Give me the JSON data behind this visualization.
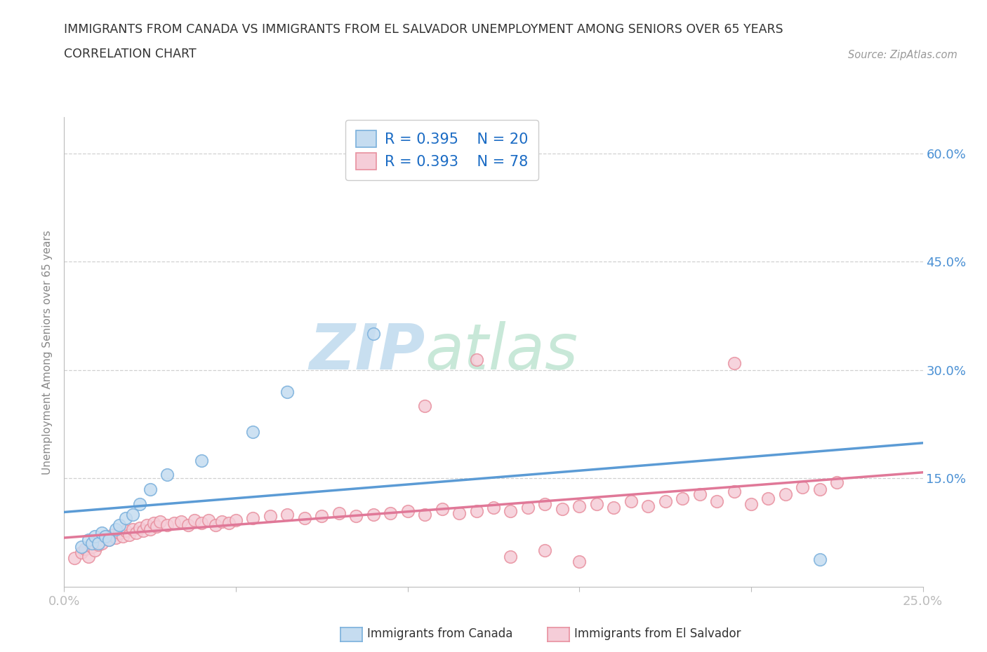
{
  "title_line1": "IMMIGRANTS FROM CANADA VS IMMIGRANTS FROM EL SALVADOR UNEMPLOYMENT AMONG SENIORS OVER 65 YEARS",
  "title_line2": "CORRELATION CHART",
  "source_text": "Source: ZipAtlas.com",
  "ylabel": "Unemployment Among Seniors over 65 years",
  "xlim": [
    0.0,
    0.25
  ],
  "ylim": [
    0.0,
    0.65
  ],
  "ytick_right_vals": [
    0.15,
    0.3,
    0.45,
    0.6
  ],
  "ytick_right_labels": [
    "15.0%",
    "30.0%",
    "45.0%",
    "60.0%"
  ],
  "canada_color": "#c5dcf0",
  "canada_edge_color": "#7ab0dc",
  "el_salvador_color": "#f5cdd8",
  "el_salvador_edge_color": "#e8909f",
  "canada_R": 0.395,
  "canada_N": 20,
  "el_salvador_R": 0.393,
  "el_salvador_N": 78,
  "canada_line_color": "#5b9bd5",
  "el_salvador_line_color": "#e07898",
  "canada_x": [
    0.005,
    0.007,
    0.008,
    0.009,
    0.01,
    0.011,
    0.012,
    0.013,
    0.015,
    0.016,
    0.018,
    0.02,
    0.022,
    0.025,
    0.03,
    0.04,
    0.055,
    0.065,
    0.09,
    0.22
  ],
  "canada_y": [
    0.055,
    0.065,
    0.06,
    0.07,
    0.06,
    0.075,
    0.07,
    0.065,
    0.08,
    0.085,
    0.095,
    0.1,
    0.115,
    0.135,
    0.155,
    0.175,
    0.215,
    0.27,
    0.35,
    0.038
  ],
  "el_salvador_x": [
    0.003,
    0.005,
    0.006,
    0.007,
    0.008,
    0.009,
    0.01,
    0.01,
    0.011,
    0.012,
    0.013,
    0.014,
    0.015,
    0.016,
    0.017,
    0.018,
    0.019,
    0.02,
    0.021,
    0.022,
    0.023,
    0.024,
    0.025,
    0.026,
    0.027,
    0.028,
    0.03,
    0.032,
    0.034,
    0.036,
    0.038,
    0.04,
    0.042,
    0.044,
    0.046,
    0.048,
    0.05,
    0.055,
    0.06,
    0.065,
    0.07,
    0.075,
    0.08,
    0.085,
    0.09,
    0.095,
    0.1,
    0.105,
    0.11,
    0.115,
    0.12,
    0.125,
    0.13,
    0.135,
    0.14,
    0.145,
    0.15,
    0.155,
    0.16,
    0.165,
    0.17,
    0.175,
    0.18,
    0.185,
    0.19,
    0.195,
    0.2,
    0.205,
    0.21,
    0.215,
    0.22,
    0.225,
    0.15,
    0.13,
    0.14,
    0.195,
    0.105,
    0.12
  ],
  "el_salvador_y": [
    0.04,
    0.048,
    0.052,
    0.042,
    0.055,
    0.05,
    0.058,
    0.065,
    0.06,
    0.07,
    0.065,
    0.072,
    0.068,
    0.075,
    0.07,
    0.078,
    0.072,
    0.08,
    0.075,
    0.082,
    0.078,
    0.085,
    0.08,
    0.088,
    0.083,
    0.09,
    0.085,
    0.088,
    0.09,
    0.085,
    0.092,
    0.088,
    0.092,
    0.085,
    0.09,
    0.088,
    0.092,
    0.095,
    0.098,
    0.1,
    0.095,
    0.098,
    0.102,
    0.098,
    0.1,
    0.102,
    0.105,
    0.1,
    0.108,
    0.102,
    0.105,
    0.11,
    0.105,
    0.11,
    0.115,
    0.108,
    0.112,
    0.115,
    0.11,
    0.118,
    0.112,
    0.118,
    0.122,
    0.128,
    0.118,
    0.132,
    0.115,
    0.122,
    0.128,
    0.138,
    0.135,
    0.145,
    0.035,
    0.042,
    0.05,
    0.31,
    0.25,
    0.315
  ]
}
